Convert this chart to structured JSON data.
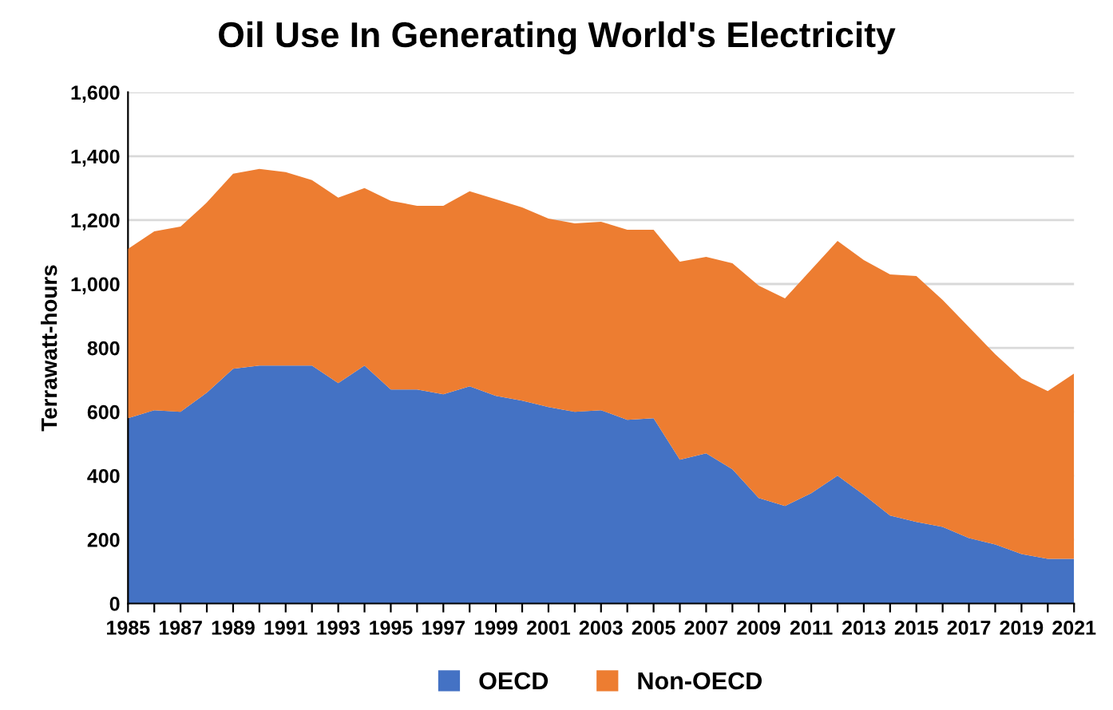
{
  "chart_data": {
    "type": "area",
    "stacked": true,
    "title": "Oil Use In Generating World's Electricity",
    "ylabel": "Terrawatt-hours",
    "categories": [
      "1985",
      null,
      "1987",
      null,
      "1989",
      null,
      "1991",
      null,
      "1993",
      null,
      "1995",
      null,
      "1997",
      null,
      "1999",
      null,
      "2001",
      null,
      "2003",
      null,
      "2005",
      null,
      "2007",
      null,
      "2009",
      null,
      "2011",
      null,
      "2013",
      null,
      "2015",
      null,
      "2017",
      null,
      "2019",
      null,
      "2021"
    ],
    "series": [
      {
        "name": "OECD",
        "color": "#4472c4",
        "values": [
          580,
          605,
          600,
          660,
          735,
          745,
          745,
          745,
          690,
          745,
          670,
          670,
          655,
          680,
          650,
          635,
          615,
          600,
          605,
          575,
          580,
          450,
          470,
          420,
          330,
          305,
          345,
          400,
          340,
          275,
          255,
          240,
          205,
          185,
          155,
          140,
          140
        ]
      },
      {
        "name": "Non-OECD",
        "color": "#ed7d31",
        "values": [
          530,
          560,
          580,
          595,
          610,
          615,
          605,
          580,
          580,
          555,
          590,
          575,
          590,
          610,
          615,
          605,
          590,
          590,
          590,
          595,
          590,
          620,
          615,
          645,
          665,
          650,
          700,
          735,
          735,
          755,
          770,
          710,
          660,
          595,
          550,
          525,
          580
        ]
      }
    ],
    "ylim": [
      0,
      1600
    ],
    "yticks": [
      {
        "value": 0,
        "label": "0"
      },
      {
        "value": 200,
        "label": "200"
      },
      {
        "value": 400,
        "label": "400"
      },
      {
        "value": 600,
        "label": "600"
      },
      {
        "value": 800,
        "label": "800"
      },
      {
        "value": 1000,
        "label": "1,000"
      },
      {
        "value": 1200,
        "label": "1,200"
      },
      {
        "value": 1400,
        "label": "1,400"
      },
      {
        "value": 1600,
        "label": "1,600"
      }
    ],
    "grid": "y",
    "legend": "bottom"
  }
}
